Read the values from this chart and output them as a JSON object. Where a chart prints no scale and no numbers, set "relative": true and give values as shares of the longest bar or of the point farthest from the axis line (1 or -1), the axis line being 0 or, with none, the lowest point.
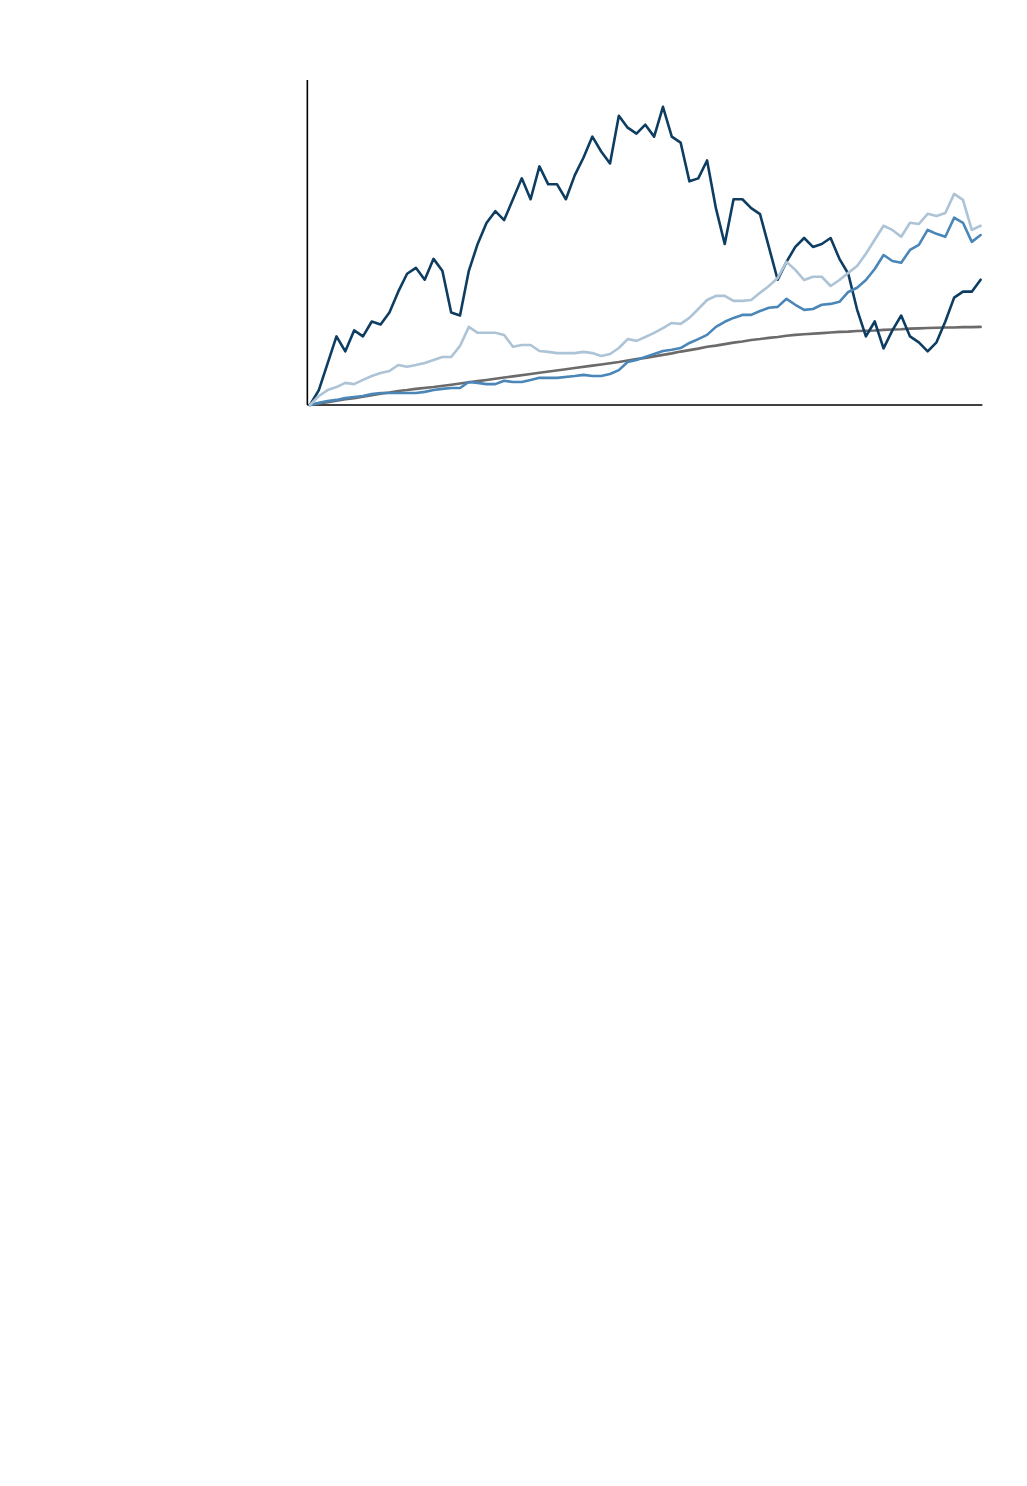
{
  "chart_data": {
    "type": "line",
    "relative": true,
    "line_style": "solid",
    "marker": "none",
    "categories": [
      null,
      null,
      null,
      null,
      null,
      null,
      null,
      null,
      null,
      null,
      null,
      null,
      null,
      null,
      null,
      null,
      null,
      null,
      null,
      null,
      null,
      null,
      null,
      null,
      null,
      null,
      null,
      null,
      null,
      null,
      null,
      null,
      null,
      null,
      null,
      null,
      null,
      null,
      null,
      null,
      null,
      null,
      null,
      null,
      null,
      null,
      null,
      null,
      null,
      null,
      null,
      null,
      null,
      null,
      null,
      null,
      null,
      null,
      null,
      null,
      null,
      null,
      null,
      null,
      null,
      null,
      null,
      null,
      null,
      null,
      null,
      null,
      null,
      null,
      null,
      null,
      null
    ],
    "series": [
      {
        "color": "#6d6a6a",
        "values": [
          0,
          0.005,
          0.009,
          0.014,
          0.019,
          0.023,
          0.028,
          0.033,
          0.038,
          0.042,
          0.047,
          0.05,
          0.054,
          0.057,
          0.06,
          0.064,
          0.068,
          0.072,
          0.076,
          0.08,
          0.084,
          0.088,
          0.092,
          0.096,
          0.1,
          0.104,
          0.108,
          0.112,
          0.116,
          0.12,
          0.124,
          0.128,
          0.132,
          0.136,
          0.14,
          0.144,
          0.149,
          0.154,
          0.158,
          0.163,
          0.168,
          0.173,
          0.179,
          0.184,
          0.189,
          0.195,
          0.199,
          0.204,
          0.209,
          0.213,
          0.218,
          0.221,
          0.225,
          0.228,
          0.232,
          0.235,
          0.237,
          0.239,
          0.241,
          0.243,
          0.245,
          0.246,
          0.248,
          0.249,
          0.25,
          0.252,
          0.253,
          0.254,
          0.256,
          0.257,
          0.258,
          0.259,
          0.26,
          0.26,
          0.261,
          0.261,
          0.262
        ]
      },
      {
        "color": "#0e3d62",
        "values": [
          0,
          0.05,
          0.14,
          0.23,
          0.18,
          0.25,
          0.23,
          0.28,
          0.27,
          0.31,
          0.38,
          0.44,
          0.46,
          0.42,
          0.49,
          0.45,
          0.31,
          0.3,
          0.45,
          0.54,
          0.61,
          0.65,
          0.62,
          0.69,
          0.76,
          0.69,
          0.8,
          0.74,
          0.74,
          0.69,
          0.77,
          0.83,
          0.9,
          0.85,
          0.81,
          0.97,
          0.93,
          0.91,
          0.94,
          0.9,
          1.0,
          0.9,
          0.88,
          0.75,
          0.76,
          0.82,
          0.66,
          0.54,
          0.69,
          0.69,
          0.66,
          0.64,
          0.53,
          0.42,
          0.48,
          0.53,
          0.56,
          0.53,
          0.54,
          0.56,
          0.49,
          0.44,
          0.32,
          0.23,
          0.28,
          0.19,
          0.25,
          0.3,
          0.23,
          0.21,
          0.18,
          0.21,
          0.28,
          0.36,
          0.38,
          0.38,
          0.42
        ]
      },
      {
        "color": "#4a86b8",
        "values": [
          0,
          0.007,
          0.013,
          0.017,
          0.023,
          0.027,
          0.03,
          0.037,
          0.04,
          0.04,
          0.04,
          0.04,
          0.04,
          0.044,
          0.05,
          0.054,
          0.057,
          0.057,
          0.077,
          0.074,
          0.07,
          0.07,
          0.081,
          0.077,
          0.077,
          0.084,
          0.091,
          0.091,
          0.091,
          0.094,
          0.097,
          0.101,
          0.097,
          0.097,
          0.104,
          0.117,
          0.144,
          0.151,
          0.161,
          0.171,
          0.181,
          0.185,
          0.191,
          0.208,
          0.221,
          0.235,
          0.262,
          0.279,
          0.292,
          0.302,
          0.302,
          0.315,
          0.326,
          0.329,
          0.356,
          0.336,
          0.319,
          0.322,
          0.336,
          0.339,
          0.346,
          0.379,
          0.393,
          0.419,
          0.456,
          0.503,
          0.483,
          0.477,
          0.52,
          0.537,
          0.587,
          0.574,
          0.564,
          0.628,
          0.611,
          0.547,
          0.57
        ]
      },
      {
        "color": "#adc3d6",
        "values": [
          0,
          0.03,
          0.05,
          0.06,
          0.074,
          0.07,
          0.084,
          0.097,
          0.107,
          0.114,
          0.134,
          0.128,
          0.134,
          0.141,
          0.151,
          0.161,
          0.161,
          0.198,
          0.262,
          0.242,
          0.242,
          0.242,
          0.235,
          0.195,
          0.201,
          0.201,
          0.181,
          0.178,
          0.174,
          0.174,
          0.174,
          0.178,
          0.174,
          0.164,
          0.171,
          0.191,
          0.221,
          0.215,
          0.228,
          0.242,
          0.258,
          0.275,
          0.272,
          0.292,
          0.322,
          0.352,
          0.366,
          0.366,
          0.349,
          0.349,
          0.352,
          0.376,
          0.399,
          0.426,
          0.48,
          0.453,
          0.419,
          0.43,
          0.43,
          0.399,
          0.419,
          0.443,
          0.466,
          0.507,
          0.554,
          0.601,
          0.587,
          0.564,
          0.611,
          0.607,
          0.641,
          0.634,
          0.644,
          0.708,
          0.688,
          0.587,
          0.601
        ]
      }
    ]
  }
}
